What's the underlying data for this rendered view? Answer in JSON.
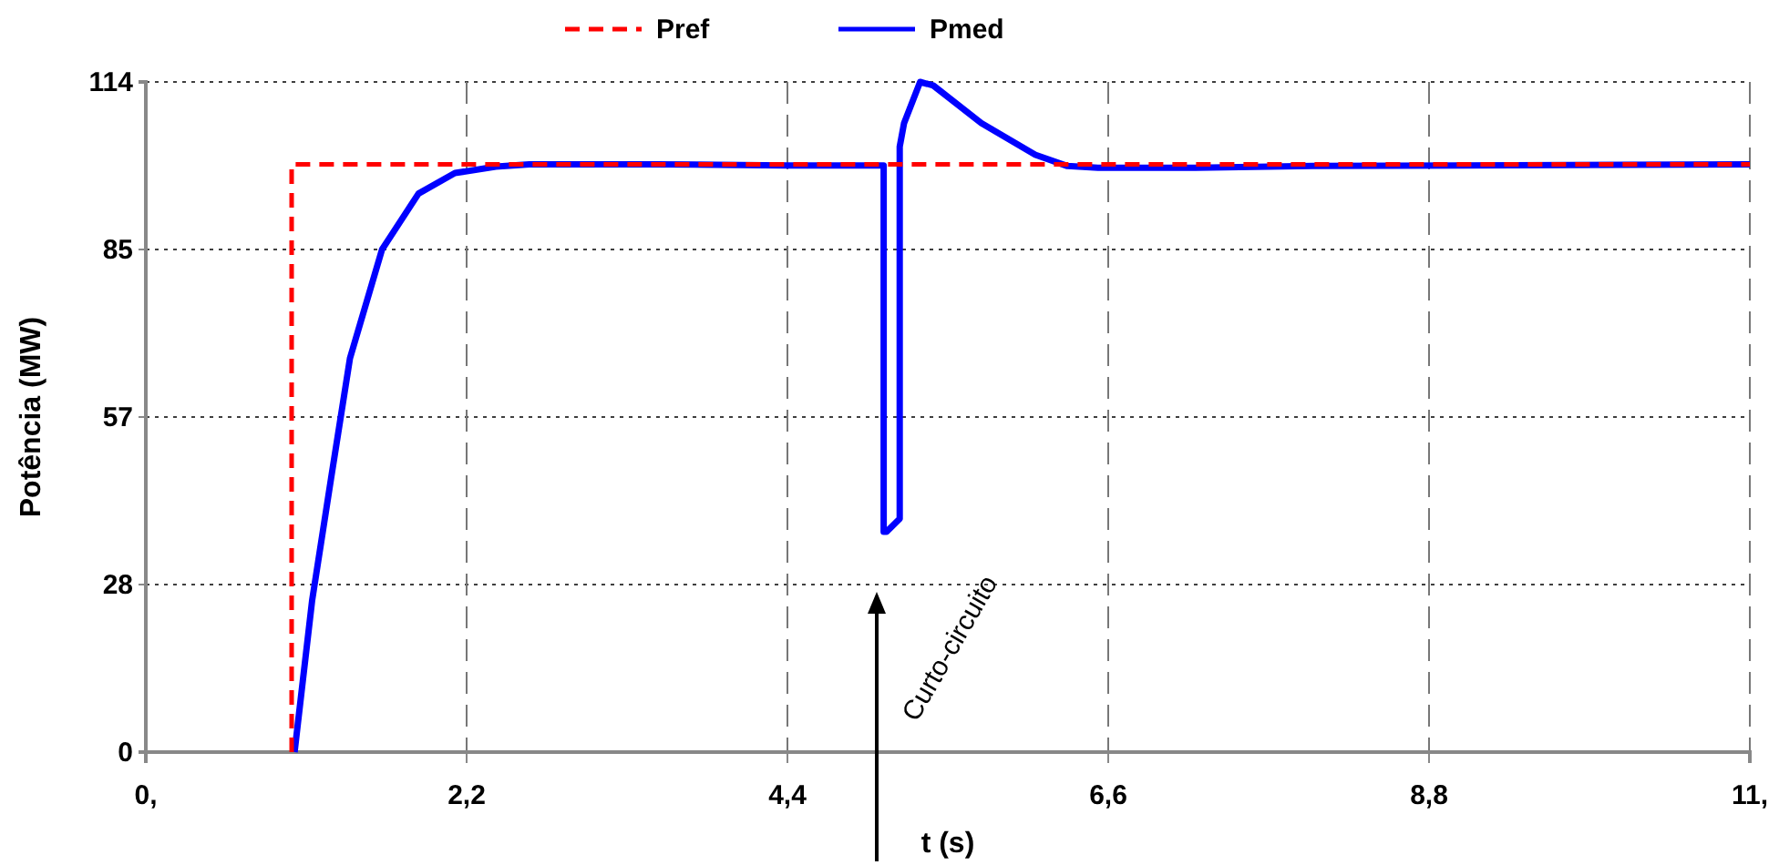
{
  "chart_data": {
    "type": "line",
    "xlabel": "t (s)",
    "ylabel": "Potência (MW)",
    "xlim": [
      0,
      11
    ],
    "xticks": [
      {
        "value": 0,
        "label": "0,"
      },
      {
        "value": 2.2,
        "label": "2,2"
      },
      {
        "value": 4.4,
        "label": "4,4"
      },
      {
        "value": 6.6,
        "label": "6,6"
      },
      {
        "value": 8.8,
        "label": "8,8"
      },
      {
        "value": 11,
        "label": "11,"
      }
    ],
    "ylim": [
      0,
      114
    ],
    "yticks": [
      0,
      {
        "value": 28.5,
        "label": "28"
      },
      57,
      {
        "value": 85.5,
        "label": "85"
      },
      114
    ],
    "grid": true,
    "legend": "top",
    "marker": "none",
    "series": [
      {
        "name": "Pref",
        "color": "#ff0000",
        "line_style": "dashed",
        "x": [
          1,
          1,
          1,
          11
        ],
        "values": [
          0,
          0,
          100,
          100
        ]
      },
      {
        "name": "Pmed",
        "color": "#0000ff",
        "line_style": "solid",
        "x": [
          1.02,
          1.14,
          1.27,
          1.4,
          1.62,
          1.87,
          2.12,
          2.4,
          2.63,
          3.5,
          4.4,
          5.06,
          5.06,
          5.08,
          5.17,
          5.17,
          5.2,
          5.31,
          5.4,
          5.73,
          6.1,
          6.32,
          6.53,
          7.2,
          8,
          9,
          11
        ],
        "values": [
          0,
          25.7,
          46.5,
          67,
          85.5,
          95,
          98.5,
          99.6,
          100,
          100,
          99.8,
          99.8,
          37.5,
          37.5,
          39.7,
          103,
          107,
          114,
          113.4,
          107,
          101.6,
          99.7,
          99.4,
          99.4,
          99.7,
          99.8,
          100
        ]
      }
    ],
    "annotations": [
      "Curto-circuito"
    ]
  }
}
